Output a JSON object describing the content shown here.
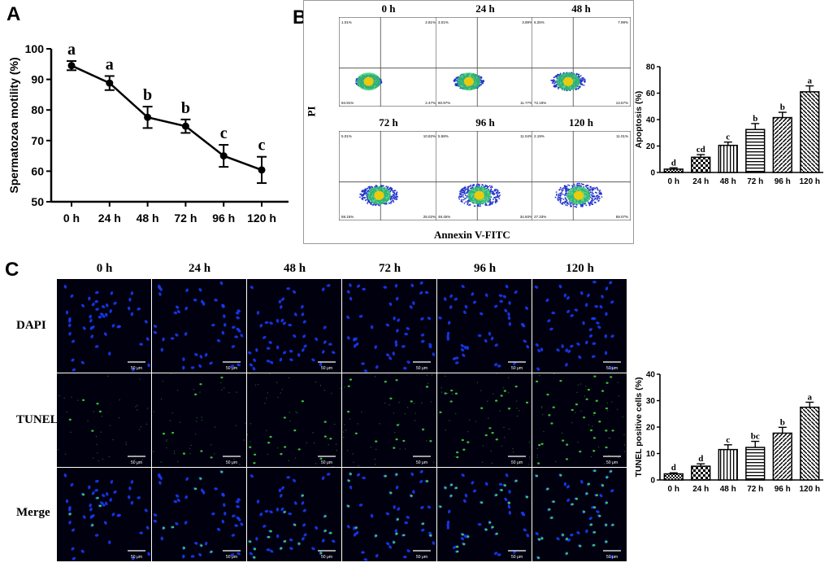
{
  "panels": {
    "a": "A",
    "b": "B",
    "c": "C"
  },
  "motility": {
    "type": "line",
    "ylabel": "Spermatozoa motility (%)",
    "ylim": [
      50,
      100
    ],
    "yticks": [
      "50",
      "60",
      "70",
      "80",
      "90",
      "100"
    ],
    "categories": [
      "0 h",
      "24 h",
      "48 h",
      "72 h",
      "96 h",
      "120 h"
    ],
    "values": [
      94.5,
      88.8,
      77.6,
      74.7,
      65.0,
      60.4
    ],
    "errors": [
      1.5,
      2.3,
      3.5,
      2.2,
      3.6,
      4.3
    ],
    "letters": [
      "a",
      "a",
      "b",
      "b",
      "c",
      "c"
    ]
  },
  "flow": {
    "ylabel": "PI",
    "xlabel": "Annexin V-FITC",
    "plots": [
      {
        "label": "0 h",
        "ul": "1.01%",
        "ur": "2.81%",
        "ll": "94.91%",
        "lr": "2.47%"
      },
      {
        "label": "24 h",
        "ul": "3.01%",
        "ur": "3.89%",
        "ll": "80.97%",
        "lr": "11.77%"
      },
      {
        "label": "48 h",
        "ul": "6.25%",
        "ur": "7.99%",
        "ll": "72.19%",
        "lr": "13.57%"
      },
      {
        "label": "72 h",
        "ul": "5.01%",
        "ur": "10.82%",
        "ll": "59.15%",
        "lr": "25.02%"
      },
      {
        "label": "96 h",
        "ul": "5.58%",
        "ur": "11.04%",
        "ll": "48.45%",
        "lr": "34.93%"
      },
      {
        "label": "120 h",
        "ul": "2.19%",
        "ur": "11.01%",
        "ll": "27.33%",
        "lr": "59.07%"
      }
    ]
  },
  "apoptosis": {
    "type": "bar",
    "ylabel": "Apoptosis (%)",
    "ylim": [
      0,
      80
    ],
    "yticks": [
      "0",
      "20",
      "40",
      "60",
      "80"
    ],
    "categories": [
      "0 h",
      "24 h",
      "48 h",
      "72 h",
      "96 h",
      "120 h"
    ],
    "values": [
      2.5,
      11.5,
      20.5,
      32.5,
      41.5,
      61
    ],
    "errors": [
      1,
      2,
      2.5,
      4.5,
      4,
      4.5
    ],
    "letters": [
      "d",
      "cd",
      "c",
      "b",
      "b",
      "a"
    ]
  },
  "tunel_bar": {
    "type": "bar",
    "ylabel": "TUNEL positive cells (%)",
    "ylim": [
      0,
      40
    ],
    "yticks": [
      "0",
      "10",
      "20",
      "30",
      "40"
    ],
    "categories": [
      "0 h",
      "24 h",
      "48 h",
      "72 h",
      "96 h",
      "120 h"
    ],
    "values": [
      2.3,
      5.2,
      11.5,
      12.3,
      17.7,
      27.5
    ],
    "errors": [
      0.4,
      0.9,
      1.8,
      2.3,
      2.2,
      1.9
    ],
    "letters": [
      "d",
      "d",
      "c",
      "bc",
      "b",
      "a"
    ]
  },
  "micro": {
    "columns": [
      "0 h",
      "24 h",
      "48 h",
      "72 h",
      "96 h",
      "120 h"
    ],
    "rows": [
      "DAPI",
      "TUNEL",
      "Merge"
    ],
    "scale_label": "50 μm"
  },
  "colors": {
    "dapi": "#1a3cff",
    "tunel": "#3ecf3e",
    "background": "#00000f",
    "grid_background": "#05050a"
  }
}
